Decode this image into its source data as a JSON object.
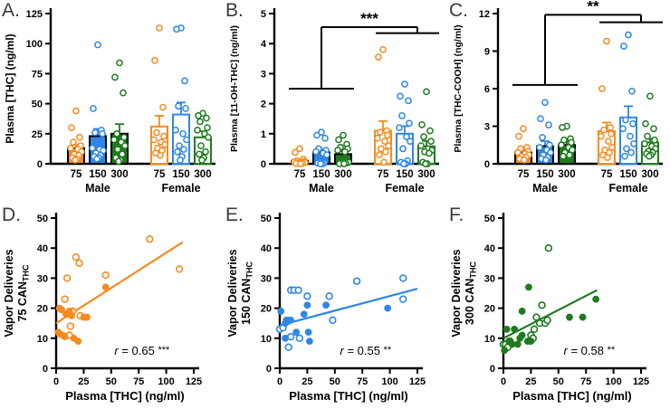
{
  "figure": {
    "background": "#ffffff",
    "axis_color": "#000000",
    "panel_label_color": "#3b3b3b",
    "dose_colors": {
      "75": "#F68B1F",
      "150": "#2E86E8",
      "300": "#1E7B1E"
    }
  },
  "chart_data": [
    {
      "panel_label": "A.",
      "type": "bar",
      "ylabel": "Plasma [THC] (ng/ml)",
      "ylim": [
        0,
        125
      ],
      "yticks": [
        0,
        25,
        50,
        75,
        100,
        125
      ],
      "significance": null,
      "groups": [
        {
          "label": "Male",
          "open": false,
          "bars": [
            {
              "dose": "75",
              "mean": 13,
              "sem": 3,
              "points": [
                44,
                30,
                22,
                18,
                15,
                13,
                12,
                10,
                8,
                7,
                5,
                4,
                3
              ]
            },
            {
              "dose": "150",
              "mean": 23,
              "sem": 6,
              "points": [
                99,
                46,
                28,
                26,
                25,
                13,
                12,
                11,
                9,
                7,
                6,
                5,
                4
              ]
            },
            {
              "dose": "300",
              "mean": 25,
              "sem": 8,
              "points": [
                84,
                72,
                59,
                25,
                22,
                20,
                18,
                15,
                12,
                8,
                5,
                3,
                2
              ]
            }
          ]
        },
        {
          "label": "Female",
          "open": true,
          "bars": [
            {
              "dose": "75",
              "mean": 31,
              "sem": 9,
              "points": [
                113,
                86,
                47,
                26,
                23,
                20,
                18,
                16,
                13,
                11,
                9,
                7
              ]
            },
            {
              "dose": "150",
              "mean": 41,
              "sem": 10,
              "points": [
                113,
                112,
                69,
                48,
                46,
                28,
                25,
                20,
                15,
                12,
                10,
                6,
                3
              ]
            },
            {
              "dose": "300",
              "mean": 22,
              "sem": 5,
              "points": [
                42,
                40,
                38,
                35,
                30,
                28,
                25,
                22,
                15,
                10,
                8,
                5,
                3
              ]
            }
          ]
        }
      ]
    },
    {
      "panel_label": "B.",
      "type": "bar",
      "ylabel": "Plasma [11-OH-THC] (ng/ml)",
      "ylim": [
        0,
        5
      ],
      "yticks": [
        0,
        1,
        2,
        3,
        4,
        5
      ],
      "significance": {
        "stars": "***",
        "male_y": 2.5,
        "top_y": 4.55,
        "female_y": 4.35
      },
      "groups": [
        {
          "label": "Male",
          "open": false,
          "bars": [
            {
              "dose": "75",
              "mean": 0.1,
              "sem": 0.04,
              "points": [
                0.5,
                0.38,
                0.15,
                0.1,
                0.08,
                0.06,
                0.05,
                0.04,
                0.03,
                0.02,
                0.01,
                0
              ]
            },
            {
              "dose": "150",
              "mean": 0.38,
              "sem": 0.1,
              "points": [
                1.05,
                0.95,
                0.85,
                0.5,
                0.45,
                0.4,
                0.35,
                0.3,
                0.05,
                0.03,
                0.02,
                0,
                0
              ]
            },
            {
              "dose": "300",
              "mean": 0.32,
              "sem": 0.09,
              "points": [
                0.95,
                0.8,
                0.65,
                0.55,
                0.5,
                0.45,
                0.4,
                0.05,
                0.03,
                0.02,
                0,
                0
              ]
            }
          ]
        },
        {
          "label": "Female",
          "open": true,
          "bars": [
            {
              "dose": "75",
              "mean": 1.1,
              "sem": 0.32,
              "points": [
                3.8,
                3.55,
                1.1,
                1.05,
                0.95,
                0.85,
                0.75,
                0.6,
                0.5,
                0.4,
                0.3,
                0.05
              ]
            },
            {
              "dose": "150",
              "mean": 1.0,
              "sem": 0.25,
              "points": [
                2.65,
                2.25,
                2.1,
                1.6,
                1.35,
                1.2,
                0.9,
                0.75,
                0.5,
                0.1,
                0.05,
                0,
                0
              ]
            },
            {
              "dose": "300",
              "mean": 0.58,
              "sem": 0.18,
              "points": [
                2.4,
                1.3,
                1.1,
                0.9,
                0.75,
                0.6,
                0.5,
                0.45,
                0.4,
                0.35,
                0.05,
                0,
                0
              ]
            }
          ]
        }
      ]
    },
    {
      "panel_label": "C.",
      "type": "bar",
      "ylabel": "Plasma [THC-COOH] (ng/ml)",
      "ylim": [
        0,
        12
      ],
      "yticks": [
        0,
        3,
        6,
        9,
        12
      ],
      "significance": {
        "stars": "**",
        "male_y": 6.3,
        "top_y": 11.9,
        "female_y": 11.3
      },
      "groups": [
        {
          "label": "Male",
          "open": false,
          "bars": [
            {
              "dose": "75",
              "mean": 0.9,
              "sem": 0.2,
              "points": [
                2.8,
                2.2,
                1.3,
                1.2,
                1.0,
                0.9,
                0.8,
                0.7,
                0.6,
                0.5,
                0.4,
                0.3
              ]
            },
            {
              "dose": "150",
              "mean": 1.4,
              "sem": 0.4,
              "points": [
                4.9,
                3.6,
                3.1,
                2.1,
                1.5,
                1.3,
                1.1,
                0.9,
                0.7,
                0.5,
                0.4,
                0.3
              ]
            },
            {
              "dose": "300",
              "mean": 1.5,
              "sem": 0.3,
              "points": [
                3.0,
                2.9,
                2.0,
                1.9,
                1.7,
                1.5,
                1.3,
                1.1,
                0.9,
                0.7,
                0.6
              ]
            }
          ]
        },
        {
          "label": "Female",
          "open": true,
          "bars": [
            {
              "dose": "75",
              "mean": 2.6,
              "sem": 0.7,
              "points": [
                9.8,
                6.0,
                2.9,
                2.7,
                2.4,
                2.2,
                1.8,
                1.3,
                1.1,
                0.9,
                0.7,
                0.5
              ]
            },
            {
              "dose": "150",
              "mean": 3.7,
              "sem": 0.9,
              "points": [
                10.3,
                9.4,
                5.8,
                3.5,
                3.2,
                2.8,
                2.2,
                1.6,
                1.2,
                0.9,
                0.6
              ]
            },
            {
              "dose": "300",
              "mean": 1.7,
              "sem": 0.3,
              "points": [
                5.4,
                3.2,
                2.8,
                2.2,
                1.9,
                1.6,
                1.4,
                1.2,
                1.0,
                0.9,
                0.8,
                0.7,
                0.6
              ]
            }
          ]
        }
      ]
    },
    {
      "panel_label": "D.",
      "type": "scatter",
      "dose": "75",
      "ylabel_line1": "Vapor Deliveries",
      "ylabel_line2": "75 CAN",
      "ylabel_sub": "THC",
      "xlabel": "Plasma [THC] (ng/ml)",
      "xlim": [
        0,
        125
      ],
      "xticks": [
        0,
        25,
        50,
        75,
        100,
        125
      ],
      "ylim": [
        0,
        50
      ],
      "yticks": [
        0,
        10,
        20,
        30,
        40,
        50
      ],
      "regression": {
        "x1": 0,
        "y1": 15,
        "x2": 115,
        "y2": 42
      },
      "r_label": {
        "var": "r",
        "value": "0.65",
        "stars": "***"
      },
      "male_points": [
        [
          2,
          12
        ],
        [
          3,
          11.5
        ],
        [
          3,
          20
        ],
        [
          5,
          19.5
        ],
        [
          6,
          11
        ],
        [
          8,
          10.5
        ],
        [
          9,
          18
        ],
        [
          11,
          18.5
        ],
        [
          12,
          19
        ],
        [
          14,
          17.5
        ],
        [
          16,
          10
        ],
        [
          20,
          9
        ],
        [
          25,
          17
        ],
        [
          28,
          17
        ],
        [
          45,
          27
        ]
      ],
      "female_points": [
        [
          8,
          23
        ],
        [
          10,
          30
        ],
        [
          12,
          11
        ],
        [
          13,
          14
        ],
        [
          15,
          19
        ],
        [
          18,
          37
        ],
        [
          21,
          35
        ],
        [
          22,
          17.5
        ],
        [
          45,
          31
        ],
        [
          85,
          43
        ],
        [
          112,
          33
        ]
      ]
    },
    {
      "panel_label": "E.",
      "type": "scatter",
      "dose": "150",
      "ylabel_line1": "Vapor Deliveries",
      "ylabel_line2": "150 CAN",
      "ylabel_sub": "THC",
      "xlabel": "Plasma [THC] (ng/ml)",
      "xlim": [
        0,
        125
      ],
      "xticks": [
        0,
        25,
        50,
        75,
        100,
        125
      ],
      "ylim": [
        0,
        50
      ],
      "yticks": [
        0,
        10,
        20,
        30,
        40,
        50
      ],
      "regression": {
        "x1": 0,
        "y1": 14.3,
        "x2": 125,
        "y2": 26.5
      },
      "r_label": {
        "var": "r",
        "value": "0.55",
        "stars": "**"
      },
      "male_points": [
        [
          1,
          19
        ],
        [
          5,
          15
        ],
        [
          6,
          16
        ],
        [
          7,
          15.5
        ],
        [
          8,
          16
        ],
        [
          10,
          16
        ],
        [
          5,
          10
        ],
        [
          15,
          12
        ],
        [
          22,
          18
        ],
        [
          25,
          21
        ],
        [
          26,
          12
        ],
        [
          27,
          9
        ],
        [
          42,
          21
        ],
        [
          98,
          20
        ]
      ],
      "female_points": [
        [
          0,
          13
        ],
        [
          3,
          13.5
        ],
        [
          10,
          26
        ],
        [
          13,
          26
        ],
        [
          17,
          26
        ],
        [
          25,
          24
        ],
        [
          45,
          24
        ],
        [
          48,
          16
        ],
        [
          70,
          29
        ],
        [
          112,
          30
        ],
        [
          112,
          23
        ],
        [
          10,
          10.5
        ],
        [
          18,
          10
        ],
        [
          8,
          7
        ]
      ]
    },
    {
      "panel_label": "F.",
      "type": "scatter",
      "dose": "300",
      "ylabel_line1": "Vapor Deliveries",
      "ylabel_line2": "300 CAN",
      "ylabel_sub": "THC",
      "xlabel": "Plasma [THC] (ng/ml)",
      "xlim": [
        0,
        125
      ],
      "xticks": [
        0,
        25,
        50,
        75,
        100,
        125
      ],
      "ylim": [
        0,
        50
      ],
      "yticks": [
        0,
        10,
        20,
        30,
        40,
        50
      ],
      "regression": {
        "x1": 0,
        "y1": 10,
        "x2": 85,
        "y2": 26
      },
      "r_label": {
        "var": "r",
        "value": "0.58",
        "stars": "**"
      },
      "male_points": [
        [
          1,
          6
        ],
        [
          3,
          13
        ],
        [
          5,
          9
        ],
        [
          8,
          8
        ],
        [
          10,
          13
        ],
        [
          13,
          8
        ],
        [
          15,
          10
        ],
        [
          17,
          19
        ],
        [
          17,
          11
        ],
        [
          22,
          9
        ],
        [
          23,
          27
        ],
        [
          25,
          9
        ],
        [
          60,
          17
        ],
        [
          72,
          17
        ],
        [
          84,
          23
        ]
      ],
      "female_points": [
        [
          0,
          8
        ],
        [
          2,
          8
        ],
        [
          4,
          7
        ],
        [
          6,
          9
        ],
        [
          25,
          11
        ],
        [
          27,
          10
        ],
        [
          28,
          13
        ],
        [
          30,
          17
        ],
        [
          33,
          15
        ],
        [
          35,
          21
        ],
        [
          38,
          15
        ],
        [
          40,
          16
        ],
        [
          41,
          40
        ]
      ]
    }
  ]
}
